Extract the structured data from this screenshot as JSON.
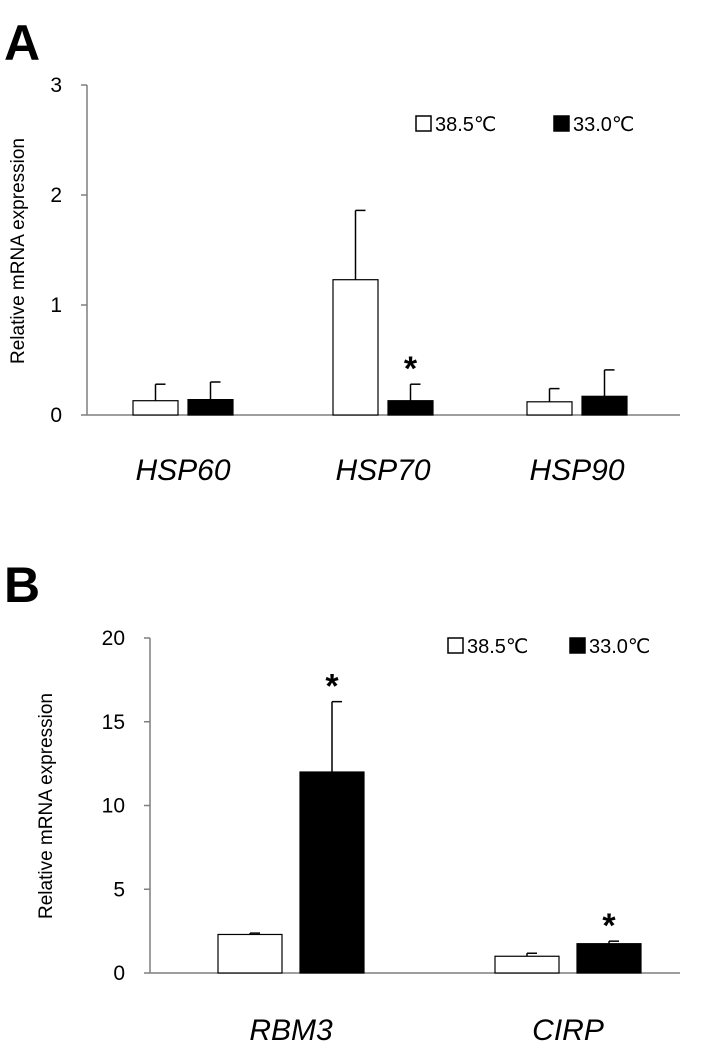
{
  "chart_data": [
    {
      "type": "bar",
      "panel": "A",
      "ylabel": "Relative mRNA expression",
      "xlabel": "",
      "ylim": [
        0,
        3
      ],
      "yticks": [
        0,
        1,
        2,
        3
      ],
      "categories": [
        "HSP60",
        "HSP70",
        "HSP90"
      ],
      "series": [
        {
          "name": "38.5℃",
          "color": "#ffffff",
          "values": [
            0.13,
            1.23,
            0.12
          ],
          "errors": [
            0.15,
            0.63,
            0.12
          ]
        },
        {
          "name": "33.0℃",
          "color": "#000000",
          "values": [
            0.14,
            0.13,
            0.17
          ],
          "errors": [
            0.16,
            0.15,
            0.24
          ]
        }
      ],
      "significance": [
        {
          "category": "HSP70",
          "series": 1,
          "label": "*"
        }
      ],
      "legend_position": "top-right",
      "grid": false
    },
    {
      "type": "bar",
      "panel": "B",
      "ylabel": "Relative mRNA expression",
      "xlabel": "",
      "ylim": [
        0,
        20
      ],
      "yticks": [
        0,
        5,
        10,
        15,
        20
      ],
      "categories": [
        "RBM3",
        "CIRP"
      ],
      "series": [
        {
          "name": "38.5℃",
          "color": "#ffffff",
          "values": [
            2.3,
            1.0
          ],
          "errors": [
            0.08,
            0.18
          ]
        },
        {
          "name": "33.0℃",
          "color": "#000000",
          "values": [
            12.0,
            1.75
          ],
          "errors": [
            4.2,
            0.15
          ]
        }
      ],
      "significance": [
        {
          "category": "RBM3",
          "series": 1,
          "label": "*"
        },
        {
          "category": "CIRP",
          "series": 1,
          "label": "*"
        }
      ],
      "legend_position": "top-right",
      "grid": false
    }
  ]
}
